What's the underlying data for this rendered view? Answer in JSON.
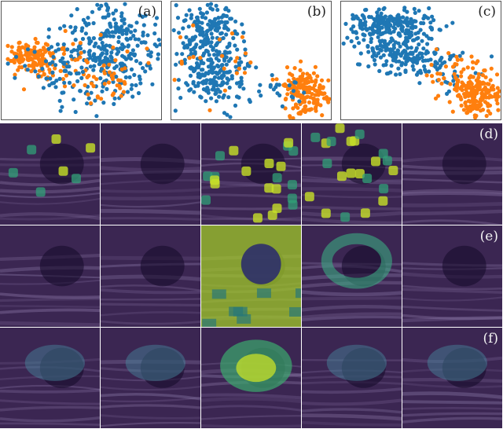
{
  "scatter_panels": [
    {
      "label": "(a)"
    },
    {
      "label": "(b)"
    },
    {
      "label": "(c)"
    }
  ],
  "row_labels": [
    "(d)",
    "(e)",
    "(f)"
  ],
  "colors": {
    "series_blue": "#1f77b4",
    "series_orange": "#ff7f0e",
    "ultrasound_base": "#3b2652",
    "heat_low": "#3e4a89",
    "heat_mid": "#2a9d8f",
    "heat_high": "#c8e020"
  },
  "icons": [
    "embedding-scatter",
    "attention-heatmap"
  ]
}
